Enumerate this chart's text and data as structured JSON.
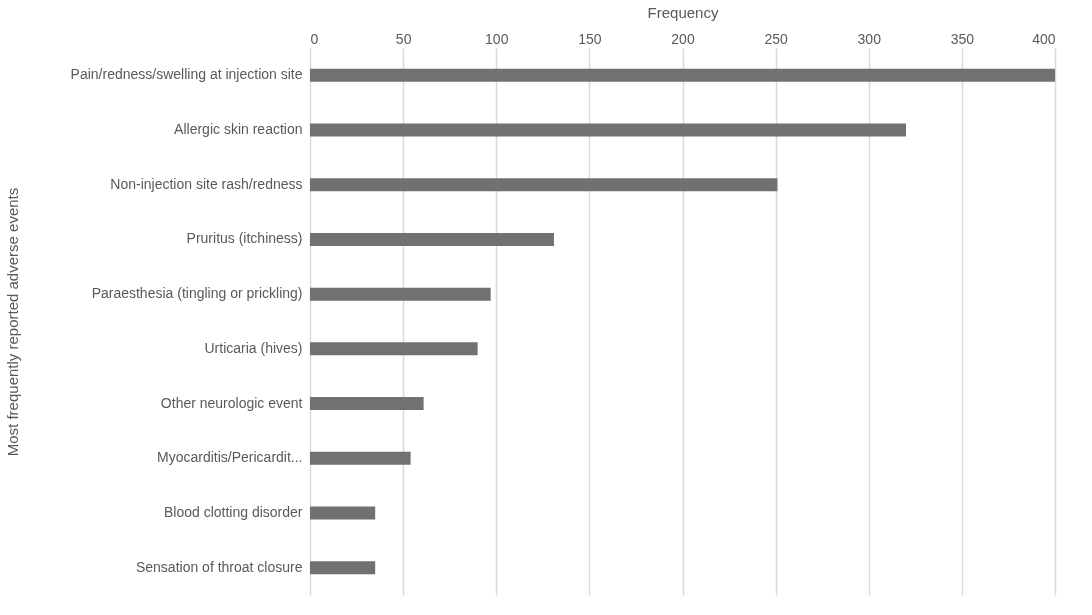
{
  "chart_data": {
    "type": "bar",
    "orientation": "horizontal",
    "xlabel": "Frequency",
    "ylabel": "Most frequently reported adverse events",
    "categories": [
      "Pain/redness/swelling at injection site",
      "Allergic skin reaction",
      "Non-injection site rash/redness",
      "Pruritus (itchiness)",
      "Paraesthesia (tingling or prickling)",
      "Urticaria (hives)",
      "Other neurologic event",
      "Myocarditis/Pericardit...",
      "Blood clotting disorder",
      "Sensation of throat closure"
    ],
    "values": [
      400,
      320,
      251,
      131,
      97,
      90,
      61,
      54,
      35,
      35
    ],
    "color": "#717171",
    "xlim": [
      0,
      400
    ],
    "xticks": [
      0,
      50,
      100,
      150,
      200,
      250,
      300,
      350,
      400
    ],
    "grid": "x"
  }
}
